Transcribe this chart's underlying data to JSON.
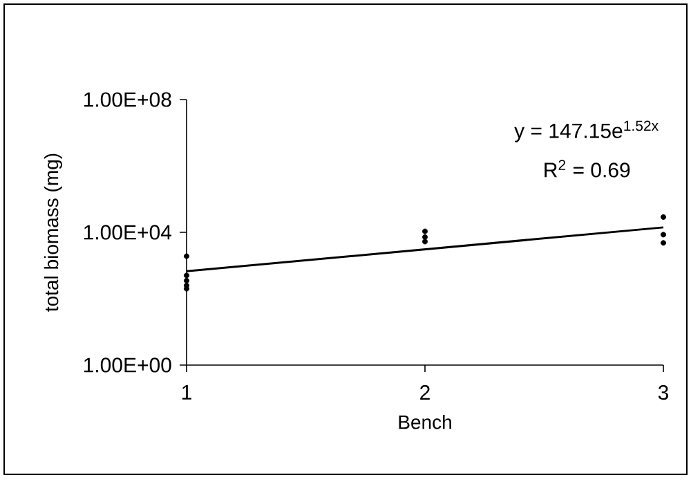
{
  "chart_data": {
    "type": "scatter",
    "xlabel": "Bench",
    "ylabel": "total biomass (mg)",
    "log": "y",
    "xlim": [
      1,
      3
    ],
    "xticks": [
      1,
      2,
      3
    ],
    "ylim": [
      1,
      100000000
    ],
    "yticks": [
      {
        "value": 1,
        "label": "1.00E+00"
      },
      {
        "value": 10000,
        "label": "1.00E+04"
      },
      {
        "value": 100000000,
        "label": "1.00E+08"
      }
    ],
    "series": [
      {
        "marker": "circle",
        "color": "#000000",
        "x": [
          1,
          1,
          1,
          1,
          1,
          2,
          2,
          2,
          3,
          3,
          3
        ],
        "values": [
          1900,
          500,
          350,
          250,
          200,
          10700,
          7200,
          5250,
          28800,
          8500,
          4800
        ]
      },
      {
        "type": "line",
        "marker": "none",
        "color": "#000000",
        "x": [
          1,
          3
        ],
        "values": [
          672,
          14070
        ]
      }
    ],
    "annotations": [
      "y = 147.15e$^{1.52x}$",
      "R$^{2}$ = 0.69"
    ]
  }
}
